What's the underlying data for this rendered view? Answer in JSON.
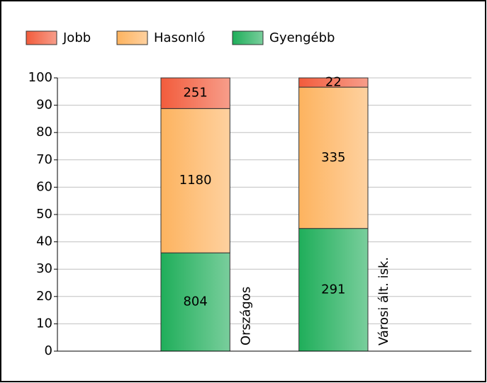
{
  "chart_data": {
    "type": "bar",
    "stacking": "percent",
    "categories": [
      "Országos",
      "Városi ált. isk."
    ],
    "series": [
      {
        "name": "Gyengébb",
        "color": "#1fae5a",
        "values": [
          804,
          291
        ]
      },
      {
        "name": "Hasonló",
        "color": "#fdb35f",
        "values": [
          1180,
          335
        ]
      },
      {
        "name": "Jobb",
        "color": "#f25c3c",
        "values": [
          251,
          22
        ]
      }
    ],
    "legend_order": [
      2,
      1,
      0
    ],
    "ylim": [
      0,
      100
    ],
    "yticks": [
      0,
      10,
      20,
      30,
      40,
      50,
      60,
      70,
      80,
      90,
      100
    ],
    "grid": true
  }
}
